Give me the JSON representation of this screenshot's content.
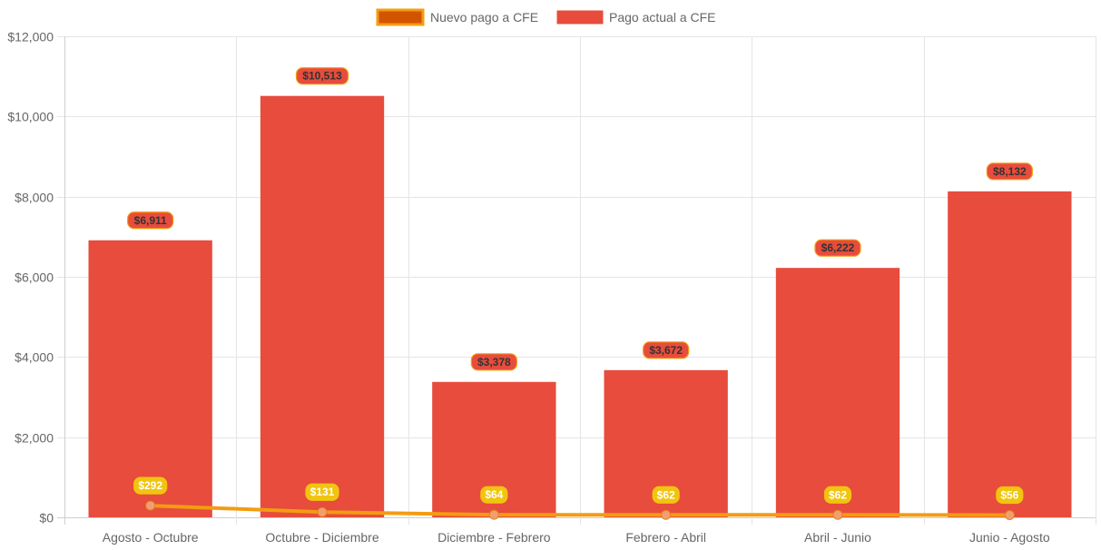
{
  "chart_data": {
    "type": "bar",
    "categories": [
      "Agosto - Octubre",
      "Octubre - Diciembre",
      "Diciembre - Febrero",
      "Febrero - Abril",
      "Abril - Junio",
      "Junio - Agosto"
    ],
    "series": [
      {
        "name": "Nuevo pago a CFE",
        "type": "line",
        "values": [
          292,
          131,
          64,
          62,
          62,
          56
        ],
        "labels": [
          "$292",
          "$131",
          "$64",
          "$62",
          "$62",
          "$56"
        ],
        "color": "#f39c12",
        "label_bg": "#f1c40f",
        "label_color": "#ffffff"
      },
      {
        "name": "Pago actual a CFE",
        "type": "bar",
        "values": [
          6911,
          10513,
          3378,
          3672,
          6222,
          8132
        ],
        "labels": [
          "$6,911",
          "$10,513",
          "$3,378",
          "$3,672",
          "$6,222",
          "$8,132"
        ],
        "color": "#e74c3c",
        "label_bg": "#e74c3c",
        "label_border": "#f39c12",
        "label_color": "#333333"
      }
    ],
    "ylim": [
      0,
      12000
    ],
    "yticks": [
      0,
      2000,
      4000,
      6000,
      8000,
      10000,
      12000
    ],
    "ytick_labels": [
      "$0",
      "$2,000",
      "$4,000",
      "$6,000",
      "$8,000",
      "$10,000",
      "$12,000"
    ],
    "grid": true,
    "legend_position": "top",
    "xlabel": "",
    "ylabel": "",
    "title": ""
  }
}
